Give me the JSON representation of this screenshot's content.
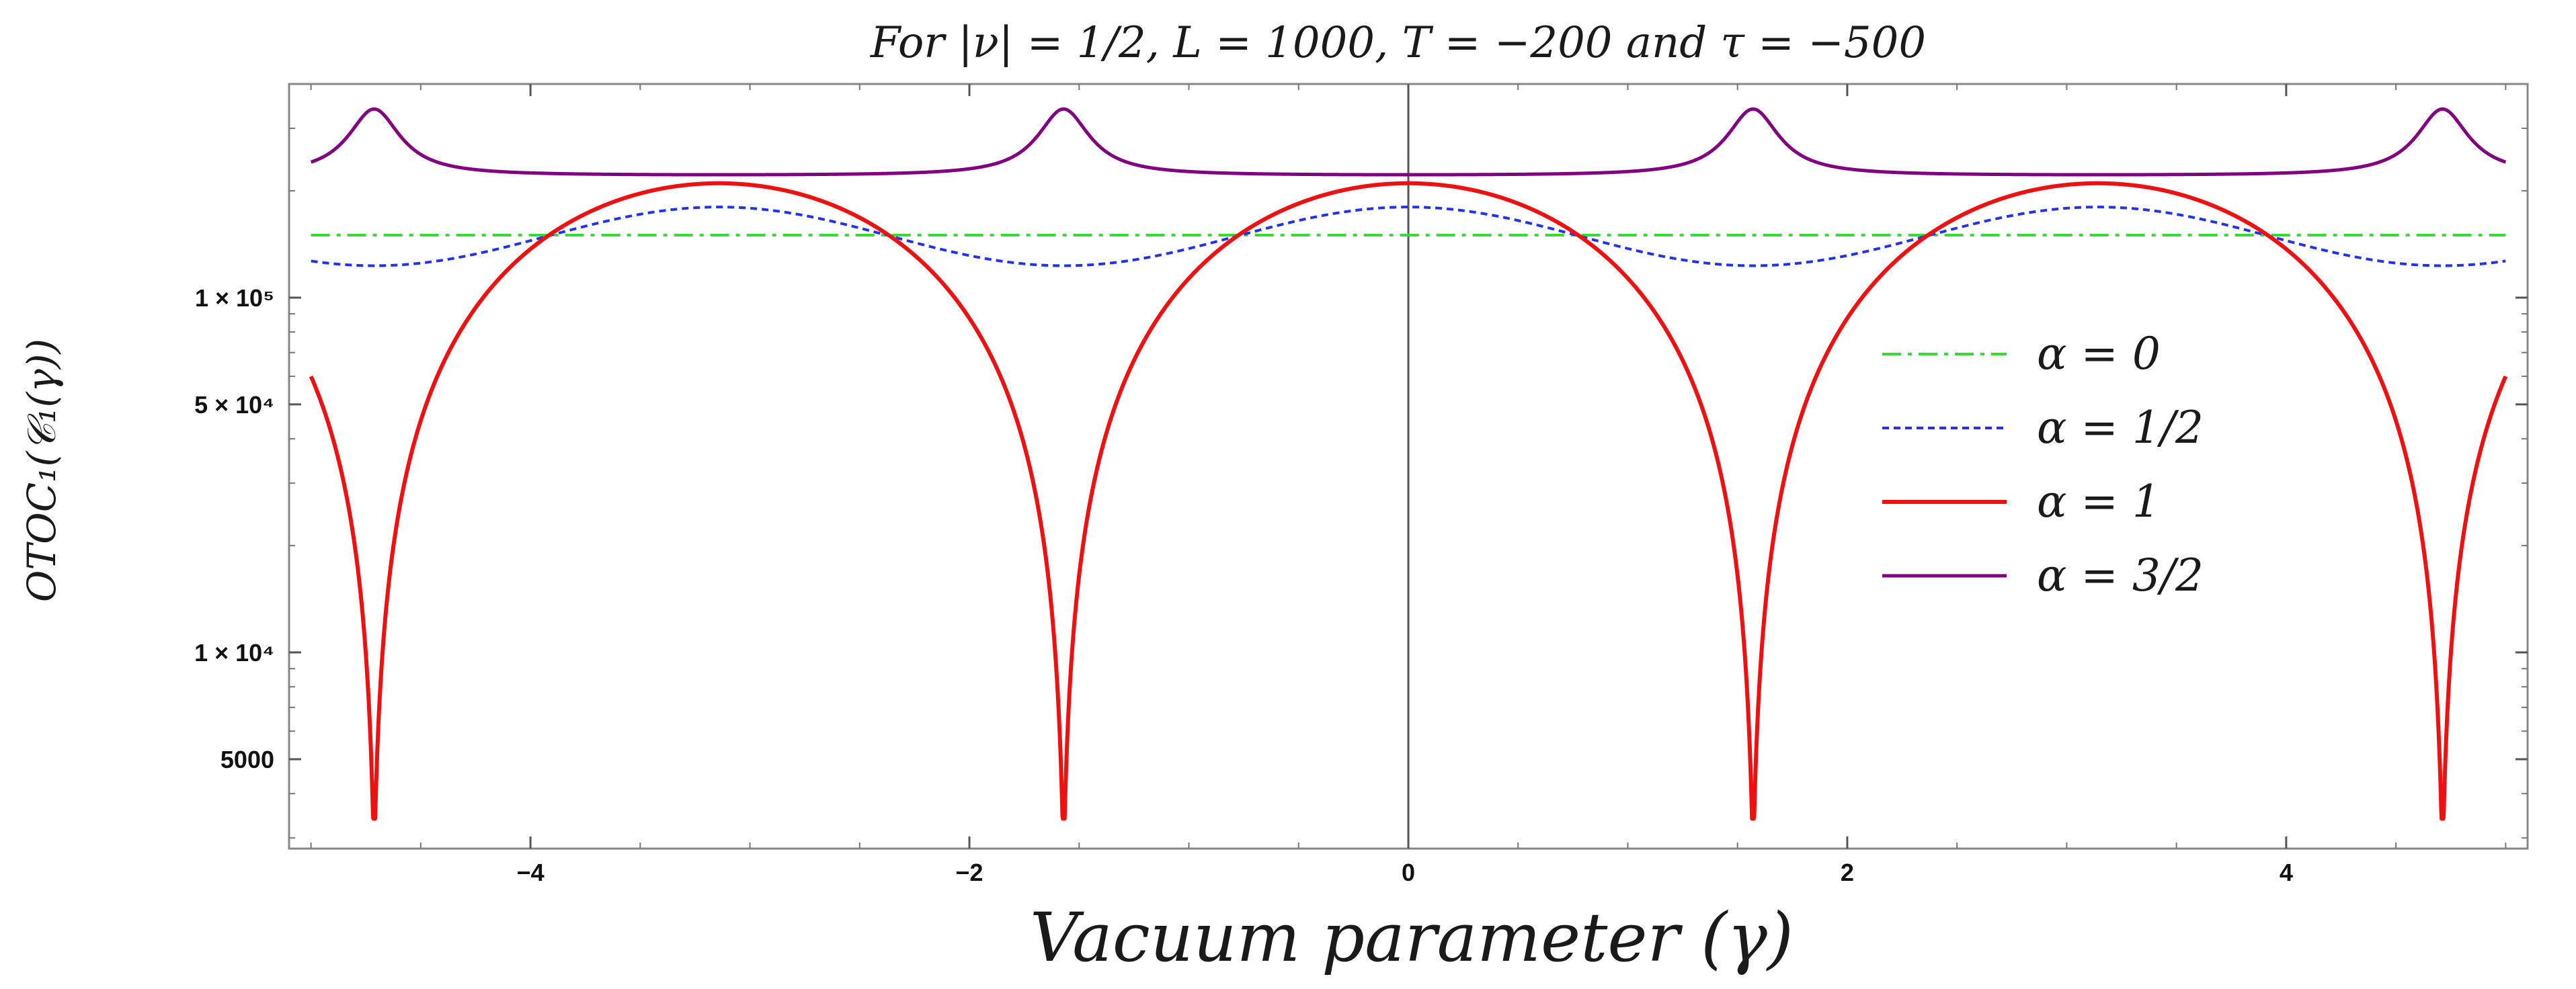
{
  "chart_data": {
    "type": "line",
    "title": "For |ν| = 1/2,  L = 1000,  T = −200 and τ = −500",
    "xlabel": "Vacuum parameter  (γ)",
    "ylabel": "OTOC₁(𝒞₁(γ))",
    "xlim": [
      -5.1,
      5.1
    ],
    "ylim": [
      2800,
      400000
    ],
    "yscale": "log",
    "x_ticks": [
      {
        "value": -4,
        "label": "−4"
      },
      {
        "value": -2,
        "label": "−2"
      },
      {
        "value": 0,
        "label": "0"
      },
      {
        "value": 2,
        "label": "2"
      },
      {
        "value": 4,
        "label": "4"
      }
    ],
    "y_ticks": [
      {
        "value": 100000,
        "label": "1 × 10⁵"
      },
      {
        "value": 50000,
        "label": "5 × 10⁴"
      },
      {
        "value": 10000,
        "label": "1 × 10⁴"
      },
      {
        "value": 5000,
        "label": "5000"
      }
    ],
    "vertical_line_at": 0,
    "legend_position": "center-right",
    "series": [
      {
        "name": "α = 0",
        "label": "α = 0",
        "color": "#33dd33",
        "dash": "dashdot",
        "description": "constant",
        "constant_value": 150000
      },
      {
        "name": "α = 1/2",
        "label": "α = 1/2",
        "color": "#2233ee",
        "dash": "dotted",
        "description": "periodic ~ cos(2γ)",
        "max_value": 180000,
        "min_value": 123000
      },
      {
        "name": "α = 1",
        "label": "α = 1",
        "color": "#ee1111",
        "dash": "solid",
        "description": "dips at γ = ±π/2, ±3π/2",
        "plateau_value": 210000,
        "dip_value": 3400
      },
      {
        "name": "α = 3/2",
        "label": "α = 3/2",
        "color": "#800080",
        "dash": "solid",
        "description": "peaks at γ = ±π/2, ±3π/2",
        "baseline_value": 220000,
        "peak_value": 340000
      }
    ]
  }
}
